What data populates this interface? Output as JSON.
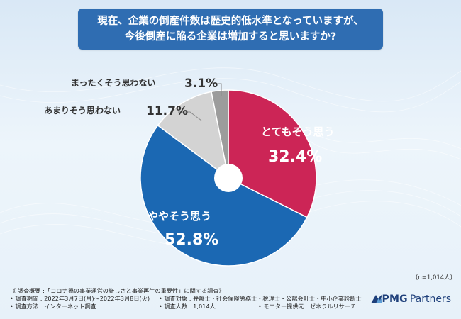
{
  "title": {
    "line1": "現在、企業の倒産件数は歴史的低水準となっていますが、",
    "line2": "今後倒産に陥る企業は増加すると思いますか?"
  },
  "chart_data": {
    "type": "pie",
    "donut": true,
    "slices": [
      {
        "label": "とてもそう思う",
        "value": 32.4,
        "display": "32.4%",
        "color": "#cc2556",
        "label_color": "#ffffff"
      },
      {
        "label": "ややそう思う",
        "value": 52.8,
        "display": "52.8%",
        "color": "#1b68b3",
        "label_color": "#ffffff"
      },
      {
        "label": "あまりそう思わない",
        "value": 11.7,
        "display": "11.7%",
        "color": "#d3d3d3",
        "label_color": "#333333"
      },
      {
        "label": "まったくそう思わない",
        "value": 3.1,
        "display": "3.1%",
        "color": "#9c9c9c",
        "label_color": "#333333"
      }
    ]
  },
  "sample_size": "(n=1,014人)",
  "footer": {
    "line1": "《 調査概要 :「コロナ禍の事業運営の厳しさと事業再生の重要性」に関する調査》",
    "period": "• 調査期間 : 2022年3月7日(月)〜2022年3月8日(火)",
    "target": "• 調査対象 : 弁護士・社会保険労務士・税理士・公認会計士・中小企業診断士",
    "method": "• 調査方法 : インターネット調査",
    "count": "• 調査人数 : 1,014人",
    "provider": "• モニター提供元 : ゼネラルリサーチ"
  },
  "logo": {
    "brand": "PMG",
    "suffix": "Partners",
    "color": "#1e3f7a"
  }
}
